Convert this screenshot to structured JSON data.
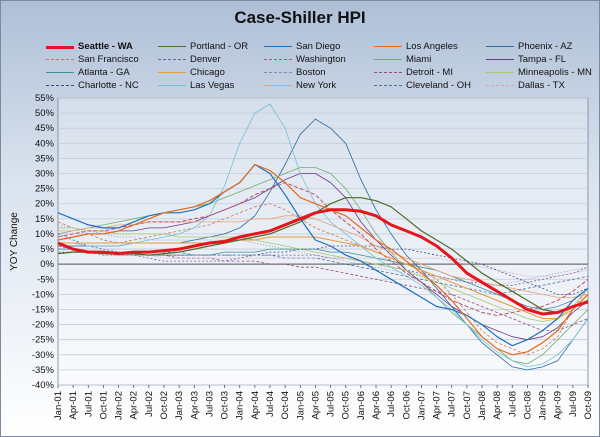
{
  "chart_data": {
    "type": "line",
    "title": "Case-Shiller HPI",
    "ylabel": "YOY Change",
    "xlabel": "",
    "ylim": [
      -40,
      55
    ],
    "yticks": [
      "55%",
      "50%",
      "45%",
      "40%",
      "35%",
      "30%",
      "25%",
      "20%",
      "15%",
      "10%",
      "5%",
      "0%",
      "-5%",
      "-10%",
      "-15%",
      "-20%",
      "-25%",
      "-30%",
      "-35%",
      "-40%"
    ],
    "ytick_values": [
      55,
      50,
      45,
      40,
      35,
      30,
      25,
      20,
      15,
      10,
      5,
      0,
      -5,
      -10,
      -15,
      -20,
      -25,
      -30,
      -35,
      -40
    ],
    "xticks": [
      "Jan-01",
      "Apr-01",
      "Jul-01",
      "Oct-01",
      "Jan-02",
      "Apr-02",
      "Jul-02",
      "Oct-02",
      "Jan-03",
      "Apr-03",
      "Jul-03",
      "Oct-03",
      "Jan-04",
      "Apr-04",
      "Jul-04",
      "Oct-04",
      "Jan-05",
      "Apr-05",
      "Jul-05",
      "Oct-05",
      "Jan-06",
      "Apr-06",
      "Jul-06",
      "Oct-06",
      "Jan-07",
      "Apr-07",
      "Jul-07",
      "Oct-07",
      "Jan-08",
      "Apr-08",
      "Jul-08",
      "Oct-08",
      "Jan-09",
      "Apr-09",
      "Jul-09",
      "Oct-09"
    ],
    "legend_position": "top",
    "grid": "horizontal",
    "series": [
      {
        "name": "Seattle - WA",
        "color": "#e8141b",
        "width": 3,
        "values": [
          7,
          5,
          4,
          4,
          3.5,
          4,
          4,
          4.5,
          5,
          6,
          7,
          7.5,
          9,
          10,
          11,
          13,
          15,
          17,
          18,
          18,
          17.5,
          16,
          13,
          11,
          9,
          6,
          2,
          -3,
          -6,
          -9,
          -12,
          -15,
          -16.5,
          -16,
          -14,
          -12.5
        ]
      },
      {
        "name": "Portland - OR",
        "color": "#4d6b2a",
        "width": 1.2,
        "values": [
          3.5,
          4,
          4,
          3.5,
          3.5,
          3.5,
          3,
          3.5,
          4,
          5,
          6,
          7,
          8,
          9,
          10,
          12,
          14,
          17,
          20,
          22,
          22,
          21,
          19,
          15,
          11,
          8,
          5,
          1,
          -3,
          -6,
          -9,
          -12,
          -15,
          -16,
          -14,
          -12
        ]
      },
      {
        "name": "San Diego",
        "color": "#1f6fc0",
        "width": 1.2,
        "values": [
          17,
          15,
          13,
          12,
          12,
          14,
          16,
          17,
          17,
          18,
          20,
          24,
          27,
          33,
          30,
          23,
          15,
          8,
          6,
          3,
          1,
          -2,
          -5,
          -8,
          -11,
          -14,
          -15,
          -17,
          -20,
          -24,
          -27,
          -25,
          -22,
          -18,
          -12,
          -8
        ]
      },
      {
        "name": "Los Angeles",
        "color": "#e46b1e",
        "width": 1.2,
        "values": [
          8,
          9,
          10,
          10,
          11,
          13,
          15,
          17,
          18,
          19,
          21,
          24,
          27,
          33,
          31,
          27,
          22,
          20,
          18,
          16,
          12,
          8,
          5,
          1,
          -3,
          -7,
          -12,
          -18,
          -24,
          -28,
          -30,
          -29,
          -26,
          -22,
          -15,
          -10
        ]
      },
      {
        "name": "Phoenix - AZ",
        "color": "#2a6aa3",
        "width": 0.8,
        "values": [
          6,
          6,
          6,
          6,
          6,
          7,
          7,
          7,
          7,
          8,
          9,
          10,
          12,
          16,
          24,
          33,
          43,
          48,
          45,
          40,
          28,
          18,
          10,
          3,
          -2,
          -8,
          -14,
          -20,
          -26,
          -30,
          -34,
          -35,
          -34,
          -32,
          -25,
          -18
        ]
      },
      {
        "name": "San Francisco",
        "color": "#c8795a",
        "width": 0.8,
        "dash": "3,2",
        "values": [
          14,
          12,
          10,
          8,
          7,
          8,
          9,
          10,
          11,
          12,
          13,
          15,
          17,
          19,
          20,
          18,
          15,
          12,
          10,
          8,
          6,
          4,
          2,
          0,
          -2,
          -5,
          -10,
          -16,
          -22,
          -26,
          -28,
          -30,
          -28,
          -24,
          -15,
          -8
        ]
      },
      {
        "name": "Denver",
        "color": "#6a5f9a",
        "width": 0.8,
        "dash": "2,2",
        "values": [
          10,
          8,
          6,
          5,
          4,
          3,
          2,
          1,
          1,
          1,
          1,
          1,
          2,
          3,
          3,
          3,
          3,
          3,
          2,
          2,
          1,
          0,
          -1,
          -2,
          -3,
          -4,
          -5,
          -6,
          -6,
          -7,
          -7,
          -6,
          -5,
          -4,
          -3,
          -1
        ]
      },
      {
        "name": "Washington",
        "color": "#c0506a",
        "width": 1,
        "dash": "4,2",
        "values": [
          9,
          10,
          11,
          11,
          12,
          13,
          14,
          14,
          14,
          15,
          16,
          18,
          20,
          23,
          25,
          27,
          25,
          23,
          18,
          14,
          10,
          5,
          1,
          -3,
          -6,
          -9,
          -12,
          -14,
          -16,
          -17,
          -16,
          -15,
          -14,
          -12,
          -9,
          -5
        ]
      },
      {
        "name": "Miami",
        "color": "#6fae6f",
        "width": 0.8,
        "values": [
          10,
          11,
          12,
          13,
          14,
          15,
          16,
          17,
          18,
          19,
          20,
          22,
          24,
          26,
          28,
          30,
          32,
          32,
          30,
          25,
          18,
          10,
          4,
          -2,
          -6,
          -11,
          -16,
          -20,
          -24,
          -28,
          -32,
          -33,
          -30,
          -25,
          -20,
          -15
        ]
      },
      {
        "name": "Tampa - FL",
        "color": "#6a3a8a",
        "width": 0.8,
        "values": [
          8,
          9,
          10,
          10,
          11,
          11,
          12,
          12,
          13,
          14,
          16,
          18,
          20,
          22,
          25,
          28,
          30,
          30,
          27,
          22,
          14,
          8,
          3,
          -2,
          -6,
          -10,
          -14,
          -17,
          -20,
          -22,
          -24,
          -25,
          -24,
          -21,
          -16,
          -12
        ]
      },
      {
        "name": "Atlanta - GA",
        "color": "#3d8f98",
        "width": 0.8,
        "values": [
          5,
          5,
          4,
          4,
          3,
          3,
          3,
          3,
          3,
          3,
          3,
          4,
          4,
          4,
          5,
          5,
          5,
          5,
          4,
          4,
          3,
          2,
          1,
          0,
          -1,
          -2,
          -4,
          -6,
          -8,
          -10,
          -12,
          -14,
          -15,
          -14,
          -12,
          -8
        ]
      },
      {
        "name": "Chicago",
        "color": "#e89a3c",
        "width": 1,
        "values": [
          7,
          7,
          7,
          7,
          7,
          7,
          7,
          7,
          7,
          7,
          7,
          8,
          8,
          8,
          9,
          9,
          9,
          9,
          8,
          7,
          6,
          4,
          2,
          0,
          -2,
          -4,
          -6,
          -8,
          -10,
          -12,
          -14,
          -16,
          -18,
          -18,
          -15,
          -10
        ]
      },
      {
        "name": "Boston",
        "color": "#7a8fb8",
        "width": 0.8,
        "dash": "1,2",
        "values": [
          13,
          12,
          11,
          10,
          9,
          9,
          8,
          8,
          8,
          8,
          8,
          8,
          8,
          7,
          6,
          5,
          4,
          3,
          2,
          1,
          0,
          -1,
          -2,
          -3,
          -4,
          -4,
          -5,
          -6,
          -7,
          -7,
          -6,
          -5,
          -4,
          -3,
          -2,
          -1
        ]
      },
      {
        "name": "Detroit - MI",
        "color": "#9a4a7a",
        "width": 0.8,
        "dash": "3,2",
        "values": [
          6,
          5,
          4,
          4,
          3,
          3,
          3,
          3,
          2,
          2,
          2,
          1,
          1,
          1,
          0,
          0,
          -1,
          -1,
          -2,
          -3,
          -4,
          -5,
          -6,
          -7,
          -8,
          -9,
          -10,
          -12,
          -14,
          -16,
          -18,
          -20,
          -22,
          -22,
          -20,
          -18
        ]
      },
      {
        "name": "Minneapolis - MN",
        "color": "#a7c86e",
        "width": 0.8,
        "values": [
          12,
          12,
          11,
          11,
          10,
          10,
          10,
          10,
          9,
          9,
          9,
          9,
          9,
          8,
          7,
          6,
          5,
          4,
          3,
          2,
          1,
          0,
          -1,
          -2,
          -4,
          -6,
          -8,
          -10,
          -12,
          -14,
          -16,
          -18,
          -19,
          -18,
          -14,
          -8
        ]
      },
      {
        "name": "Charlotte - NC",
        "color": "#3a4a8a",
        "width": 0.8,
        "dash": "2,2",
        "values": [
          4,
          4,
          4,
          3,
          3,
          3,
          3,
          3,
          3,
          3,
          3,
          3,
          3,
          3,
          4,
          4,
          5,
          5,
          6,
          6,
          6,
          6,
          5,
          5,
          4,
          3,
          2,
          1,
          0,
          -2,
          -4,
          -6,
          -8,
          -10,
          -10,
          -8
        ]
      },
      {
        "name": "Las Vegas",
        "color": "#74c2d6",
        "width": 0.8,
        "values": [
          7,
          7,
          6,
          6,
          6,
          7,
          8,
          9,
          10,
          12,
          16,
          26,
          40,
          50,
          53,
          45,
          30,
          20,
          14,
          10,
          6,
          2,
          -1,
          -4,
          -7,
          -11,
          -15,
          -20,
          -25,
          -29,
          -32,
          -34,
          -33,
          -30,
          -25,
          -18
        ]
      },
      {
        "name": "New York",
        "color": "#e8a27a",
        "width": 0.8,
        "values": [
          11,
          11,
          12,
          12,
          13,
          13,
          14,
          14,
          14,
          14,
          14,
          14,
          14,
          15,
          15,
          16,
          16,
          15,
          13,
          11,
          9,
          6,
          4,
          2,
          0,
          -2,
          -4,
          -5,
          -6,
          -7,
          -8,
          -9,
          -10,
          -11,
          -11,
          -10
        ]
      },
      {
        "name": "Cleveland - OH",
        "color": "#4a6fa8",
        "width": 0.8,
        "dash": "3,2",
        "values": [
          5,
          5,
          4,
          4,
          4,
          4,
          4,
          4,
          4,
          3,
          3,
          3,
          3,
          3,
          3,
          2,
          2,
          2,
          1,
          0,
          -1,
          -2,
          -3,
          -4,
          -5,
          -6,
          -7,
          -8,
          -9,
          -10,
          -9,
          -8,
          -7,
          -6,
          -5,
          -4
        ]
      },
      {
        "name": "Dallas - TX",
        "color": "#d6a1bd",
        "width": 0.8,
        "dash": "1,1",
        "values": [
          4,
          4,
          4,
          3,
          3,
          3,
          3,
          2,
          2,
          2,
          2,
          2,
          2,
          2,
          2,
          2,
          2,
          2,
          2,
          2,
          2,
          2,
          2,
          2,
          2,
          2,
          1,
          0,
          -1,
          -2,
          -3,
          -4,
          -4,
          -4,
          -3,
          -2
        ]
      }
    ]
  }
}
